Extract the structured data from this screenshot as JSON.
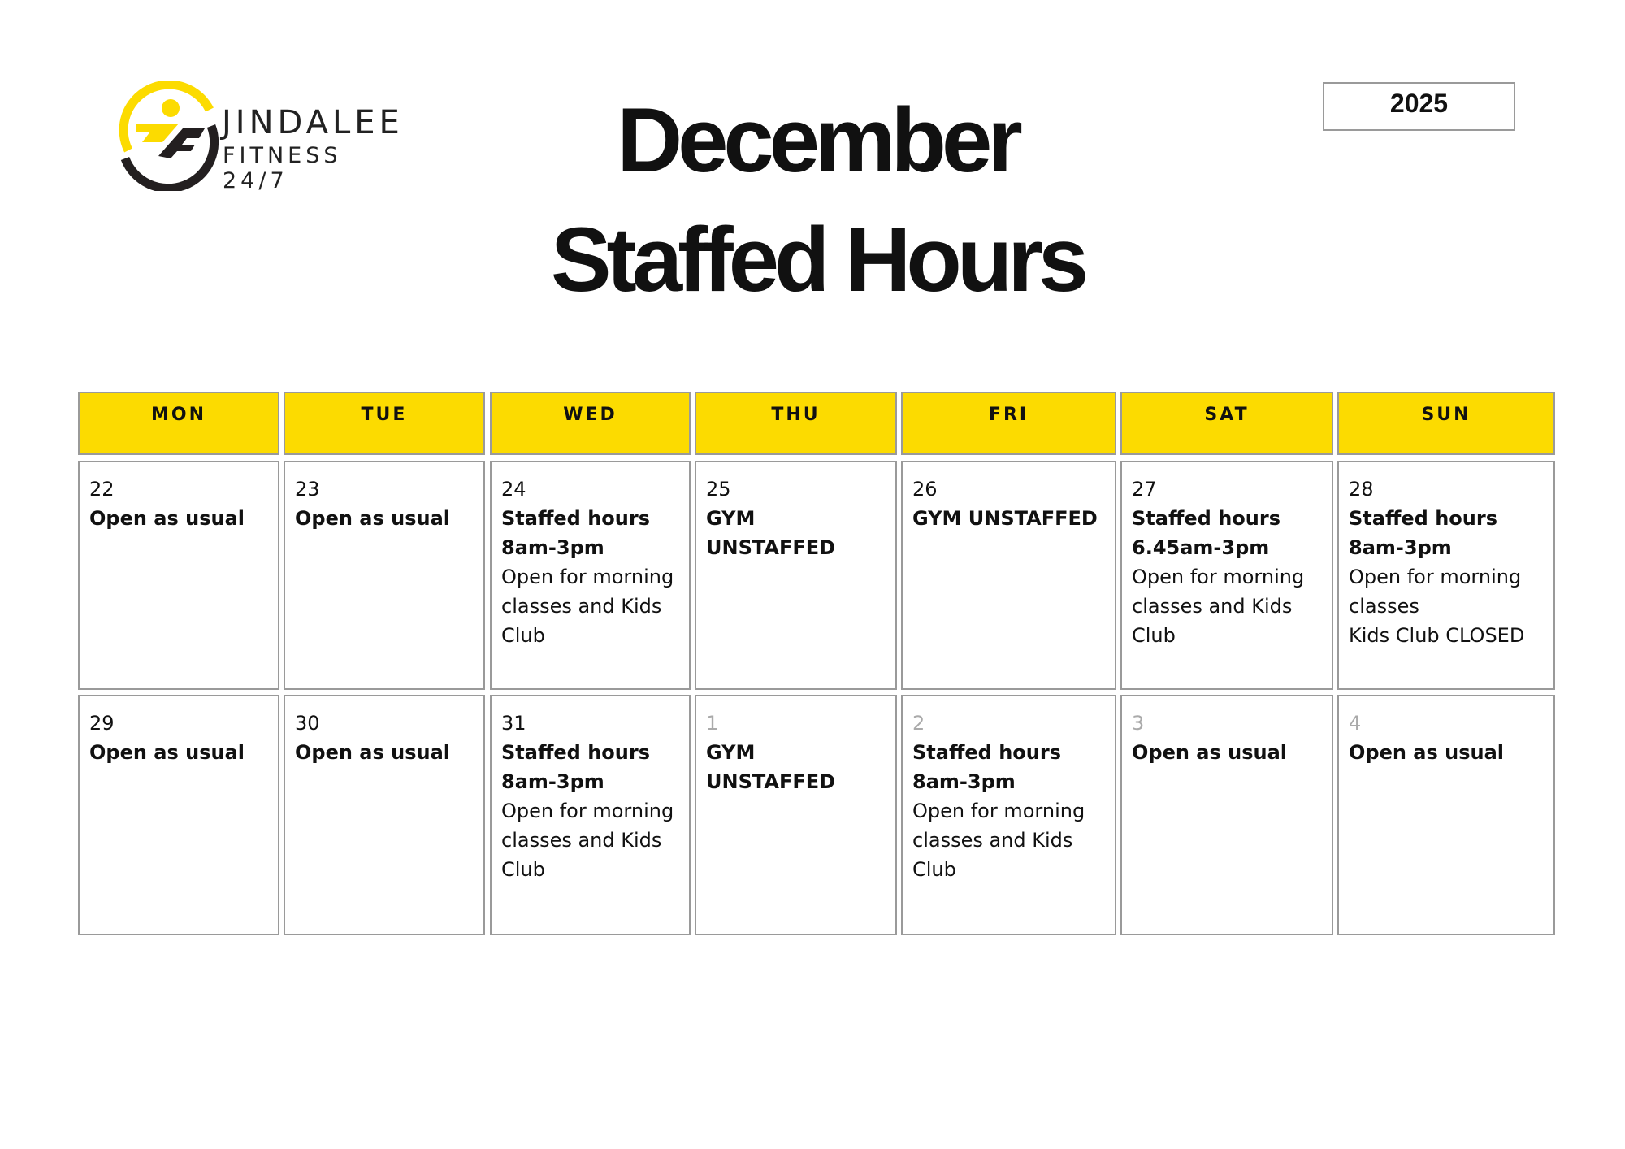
{
  "logo": {
    "name": "JINDALEE",
    "subtitle": "FITNESS 24/7",
    "colors": {
      "yellow": "#fcdb00",
      "dark": "#231f20"
    }
  },
  "title": {
    "line1": "December",
    "line2": "Staffed Hours"
  },
  "year": "2025",
  "header_color": "#fcdb00",
  "days": [
    "MON",
    "TUE",
    "WED",
    "THU",
    "FRI",
    "SAT",
    "SUN"
  ],
  "weeks": [
    [
      {
        "date": "22",
        "bold": [
          "Open as usual"
        ],
        "notes": []
      },
      {
        "date": "23",
        "bold": [
          "Open as usual"
        ],
        "notes": []
      },
      {
        "date": "24",
        "bold": [
          "Staffed hours",
          "8am-3pm"
        ],
        "notes": [
          "Open for morning classes and Kids Club"
        ]
      },
      {
        "date": "25",
        "bold": [
          "GYM UNSTAFFED"
        ],
        "notes": []
      },
      {
        "date": "26",
        "bold": [
          "GYM UNSTAFFED"
        ],
        "notes": []
      },
      {
        "date": "27",
        "bold": [
          "Staffed hours",
          "6.45am-3pm"
        ],
        "notes": [
          "Open for morning classes and Kids Club"
        ]
      },
      {
        "date": "28",
        "bold": [
          "Staffed hours",
          "8am-3pm"
        ],
        "notes": [
          "Open for morning classes",
          "Kids Club CLOSED"
        ]
      }
    ],
    [
      {
        "date": "29",
        "bold": [
          "Open as usual"
        ],
        "notes": []
      },
      {
        "date": "30",
        "bold": [
          "Open as usual"
        ],
        "notes": []
      },
      {
        "date": "31",
        "bold": [
          "Staffed hours",
          "8am-3pm"
        ],
        "notes": [
          "Open for morning classes and Kids Club"
        ]
      },
      {
        "date": "1",
        "dim": true,
        "bold": [
          "GYM UNSTAFFED"
        ],
        "notes": []
      },
      {
        "date": "2",
        "dim": true,
        "bold": [
          "Staffed hours",
          "8am-3pm"
        ],
        "notes": [
          "Open for morning classes and Kids Club"
        ]
      },
      {
        "date": "3",
        "dim": true,
        "bold": [
          "Open as usual"
        ],
        "notes": []
      },
      {
        "date": "4",
        "dim": true,
        "bold": [
          "Open as usual"
        ],
        "notes": []
      }
    ]
  ]
}
